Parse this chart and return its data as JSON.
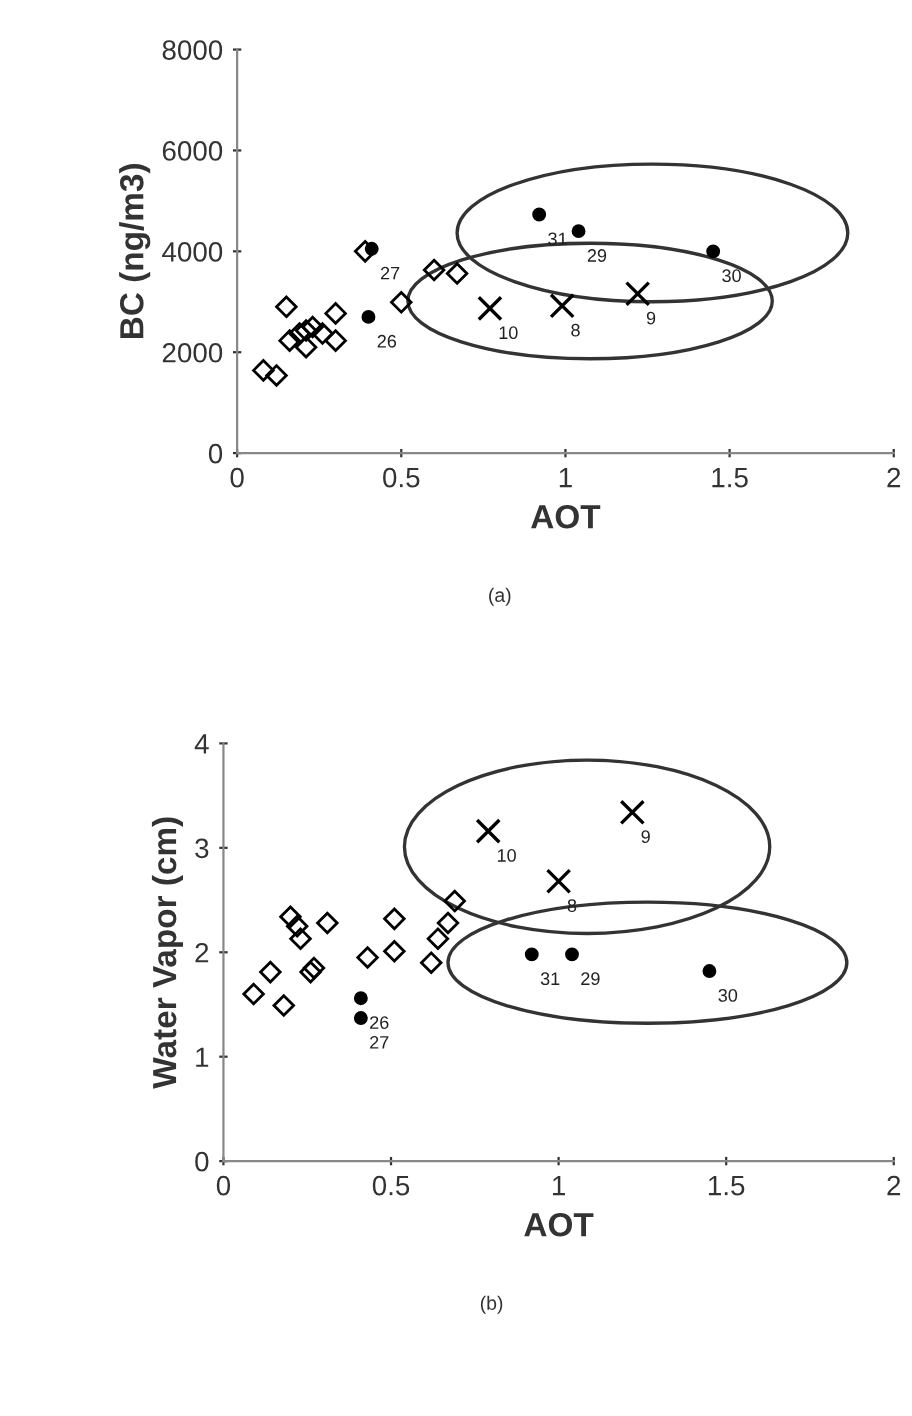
{
  "chart_data": [
    {
      "type": "scatter",
      "xlabel": "AOT",
      "ylabel": "BC (ng/m3)",
      "xlim": [
        0,
        2
      ],
      "ylim": [
        0,
        8000
      ],
      "xticks": [
        0,
        0.5,
        1,
        1.5,
        2
      ],
      "yticks": [
        0,
        2000,
        4000,
        6000,
        8000
      ],
      "grid": false,
      "series": [
        {
          "color": "#000000",
          "marker": "diamond",
          "x": [
            0.08,
            0.12,
            0.15,
            0.16,
            0.19,
            0.21,
            0.23,
            0.26,
            0.3,
            0.3,
            0.21,
            0.39,
            0.5,
            0.6,
            0.67
          ],
          "values": [
            1640,
            1540,
            2900,
            2230,
            2370,
            2430,
            2500,
            2370,
            2770,
            2230,
            2100,
            4000,
            2990,
            3630,
            3560
          ]
        },
        {
          "color": "#000000",
          "marker": "circle",
          "x": [
            0.4,
            0.41,
            0.92,
            1.04,
            1.45
          ],
          "values": [
            2700,
            4050,
            4730,
            4400,
            4000
          ]
        },
        {
          "color": "#000000",
          "marker": "cross",
          "x": [
            0.77,
            0.99,
            1.22
          ],
          "values": [
            2870,
            2920,
            3160
          ]
        }
      ],
      "annotations": [
        {
          "text": "26",
          "x": 0.4,
          "y": 2700
        },
        {
          "text": "27",
          "x": 0.41,
          "y": 4050
        },
        {
          "text": "31",
          "x": 0.92,
          "y": 4730
        },
        {
          "text": "29",
          "x": 1.04,
          "y": 4400
        },
        {
          "text": "30",
          "x": 1.45,
          "y": 4000
        },
        {
          "text": "10",
          "x": 0.77,
          "y": 2870
        },
        {
          "text": "8",
          "x": 0.99,
          "y": 2920
        },
        {
          "text": "9",
          "x": 1.22,
          "y": 3160
        },
        "(a)"
      ]
    },
    {
      "type": "scatter",
      "xlabel": "AOT",
      "ylabel": "Water Vapor (cm)",
      "xlim": [
        0,
        2
      ],
      "ylim": [
        0,
        4
      ],
      "xticks": [
        0,
        0.5,
        1,
        1.5,
        2
      ],
      "yticks": [
        0,
        1,
        2,
        3,
        4
      ],
      "grid": false,
      "series": [
        {
          "color": "#000000",
          "marker": "diamond",
          "x": [
            0.09,
            0.14,
            0.18,
            0.2,
            0.22,
            0.23,
            0.26,
            0.27,
            0.31,
            0.43,
            0.51,
            0.51,
            0.62,
            0.64,
            0.67,
            0.69
          ],
          "values": [
            1.6,
            1.81,
            1.49,
            2.34,
            2.25,
            2.13,
            1.81,
            1.85,
            2.28,
            1.95,
            2.32,
            2.01,
            1.9,
            2.13,
            2.28,
            2.49
          ]
        },
        {
          "color": "#000000",
          "marker": "circle",
          "x": [
            0.41,
            0.41,
            0.92,
            1.04,
            1.45
          ],
          "values": [
            1.56,
            1.37,
            1.98,
            1.98,
            1.82
          ]
        },
        {
          "color": "#000000",
          "marker": "cross",
          "x": [
            0.79,
            1.0,
            1.22
          ],
          "values": [
            3.16,
            2.68,
            3.34
          ]
        }
      ],
      "annotations": [
        {
          "text": "26",
          "x": 0.41,
          "y": 1.56
        },
        {
          "text": "27",
          "x": 0.41,
          "y": 1.37
        },
        {
          "text": "31",
          "x": 0.92,
          "y": 1.98
        },
        {
          "text": "29",
          "x": 1.04,
          "y": 1.98
        },
        {
          "text": "30",
          "x": 1.45,
          "y": 1.82
        },
        {
          "text": "10",
          "x": 0.79,
          "y": 3.16
        },
        {
          "text": "8",
          "x": 1.0,
          "y": 2.68
        },
        {
          "text": "9",
          "x": 1.22,
          "y": 3.34
        },
        "(b)"
      ]
    }
  ]
}
